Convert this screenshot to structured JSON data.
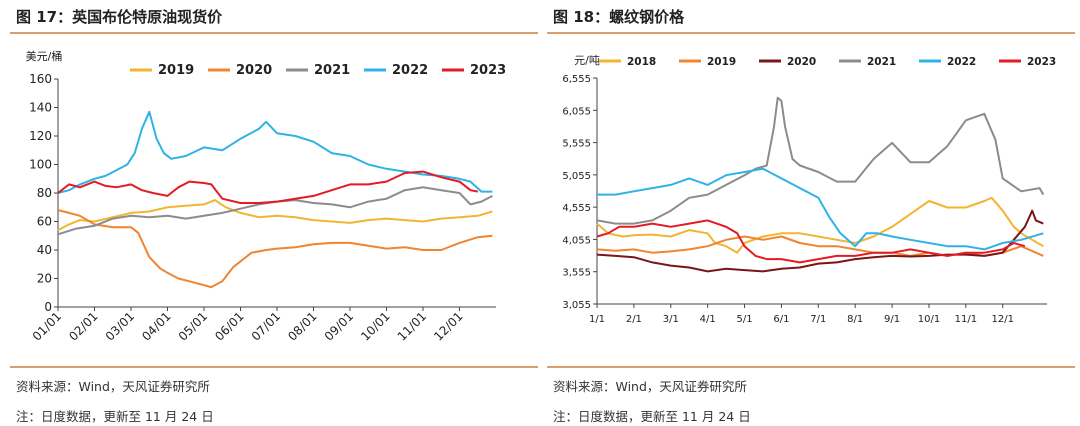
{
  "panels": [
    {
      "title": "图 17：英国布伦特原油现货价",
      "source": "资料来源：Wind，天风证券研究所",
      "note": "注：日度数据，更新至 11 月 24 日",
      "chart_data": {
        "type": "line",
        "ylabel": "美元/桶",
        "ylim": [
          0,
          160
        ],
        "yticks": [
          "0",
          "20",
          "40",
          "60",
          "80",
          "100",
          "120",
          "140",
          "160"
        ],
        "categories": [
          "01/01",
          "02/01",
          "03/01",
          "04/01",
          "05/01",
          "06/01",
          "07/01",
          "08/01",
          "09/01",
          "10/01",
          "11/01",
          "12/01"
        ],
        "xrange": [
          0,
          12
        ],
        "series": [
          {
            "name": "2019",
            "color": "#f2b431",
            "x": [
              0,
              0.3,
              0.6,
              1,
              1.5,
              2,
              2.5,
              3,
              3.5,
              4,
              4.3,
              4.6,
              5,
              5.5,
              6,
              6.5,
              7,
              7.5,
              8,
              8.5,
              9,
              9.5,
              10,
              10.5,
              11,
              11.5,
              11.9
            ],
            "y": [
              54,
              58,
              61,
              60,
              63,
              66,
              67,
              70,
              71,
              72,
              75,
              70,
              66,
              63,
              64,
              63,
              61,
              60,
              59,
              61,
              62,
              61,
              60,
              62,
              63,
              64,
              67
            ]
          },
          {
            "name": "2020",
            "color": "#ef8431",
            "x": [
              0,
              0.3,
              0.6,
              1,
              1.5,
              2,
              2.2,
              2.5,
              2.8,
              3,
              3.3,
              3.6,
              3.9,
              4.2,
              4.5,
              4.8,
              5,
              5.3,
              5.7,
              6,
              6.5,
              7,
              7.5,
              8,
              8.5,
              9,
              9.5,
              10,
              10.5,
              11,
              11.5,
              11.9
            ],
            "y": [
              68,
              66,
              64,
              58,
              56,
              56,
              52,
              35,
              27,
              24,
              20,
              18,
              16,
              14,
              18,
              28,
              32,
              38,
              40,
              41,
              42,
              44,
              45,
              45,
              43,
              41,
              42,
              40,
              40,
              45,
              49,
              50
            ]
          },
          {
            "name": "2021",
            "color": "#8c8c8c",
            "x": [
              0,
              0.5,
              1,
              1.5,
              2,
              2.5,
              3,
              3.5,
              4,
              4.5,
              5,
              5.5,
              6,
              6.5,
              7,
              7.5,
              8,
              8.5,
              9,
              9.5,
              10,
              10.5,
              11,
              11.3,
              11.6,
              11.9
            ],
            "y": [
              51,
              55,
              57,
              62,
              64,
              63,
              64,
              62,
              64,
              66,
              69,
              72,
              74,
              75,
              73,
              72,
              70,
              74,
              76,
              82,
              84,
              82,
              80,
              72,
              74,
              78
            ]
          },
          {
            "name": "2022",
            "color": "#2fb2e5",
            "x": [
              0,
              0.3,
              0.6,
              1,
              1.3,
              1.6,
              1.9,
              2.1,
              2.3,
              2.5,
              2.7,
              2.9,
              3.1,
              3.5,
              4,
              4.5,
              5,
              5.5,
              5.7,
              6,
              6.5,
              7,
              7.5,
              8,
              8.5,
              9,
              9.5,
              10,
              10.5,
              11,
              11.3,
              11.6,
              11.9
            ],
            "y": [
              80,
              82,
              86,
              90,
              92,
              96,
              100,
              108,
              125,
              137,
              118,
              108,
              104,
              106,
              112,
              110,
              118,
              125,
              130,
              122,
              120,
              116,
              108,
              106,
              100,
              97,
              95,
              93,
              92,
              90,
              88,
              81,
              81
            ]
          },
          {
            "name": "2023",
            "color": "#e31b23",
            "x": [
              0,
              0.3,
              0.6,
              1,
              1.3,
              1.6,
              2,
              2.3,
              2.6,
              3,
              3.3,
              3.6,
              4,
              4.2,
              4.5,
              5,
              5.5,
              6,
              6.5,
              7,
              7.5,
              8,
              8.5,
              9,
              9.5,
              10,
              10.5,
              11,
              11.3,
              11.5
            ],
            "y": [
              80,
              86,
              84,
              88,
              85,
              84,
              86,
              82,
              80,
              78,
              84,
              88,
              87,
              86,
              76,
              73,
              73,
              74,
              76,
              78,
              82,
              86,
              86,
              88,
              94,
              95,
              91,
              88,
              82,
              81
            ]
          }
        ]
      }
    },
    {
      "title": "图 18：螺纹钢价格",
      "source": "资料来源：Wind，天风证券研究所",
      "note": "注：日度数据，更新至 11 月 24 日",
      "chart_data": {
        "type": "line",
        "ylabel": "元/吨",
        "ylim": [
          3055,
          6555
        ],
        "yticks": [
          "3,055",
          "3,555",
          "4,055",
          "4,555",
          "5,055",
          "5,555",
          "6,055",
          "6,555"
        ],
        "categories": [
          "1/1",
          "2/1",
          "3/1",
          "4/1",
          "5/1",
          "6/1",
          "7/1",
          "8/1",
          "9/1",
          "10/1",
          "11/1",
          "12/1"
        ],
        "xrange": [
          0,
          12.2
        ],
        "series": [
          {
            "name": "2018",
            "color": "#f2b431",
            "x": [
              0,
              0.3,
              0.7,
              1,
              1.5,
              2,
              2.5,
              3,
              3.2,
              3.5,
              3.8,
              4,
              4.5,
              5,
              5.5,
              6,
              6.5,
              7,
              7.5,
              8,
              8.5,
              9,
              9.5,
              10,
              10.5,
              10.7,
              11,
              11.3,
              11.5,
              11.8,
              12.1
            ],
            "y": [
              4300,
              4150,
              4100,
              4120,
              4130,
              4100,
              4200,
              4150,
              4000,
              3950,
              3850,
              4000,
              4100,
              4150,
              4150,
              4100,
              4050,
              4000,
              4100,
              4250,
              4450,
              4650,
              4550,
              4550,
              4650,
              4700,
              4500,
              4250,
              4150,
              4050,
              3950
            ]
          },
          {
            "name": "2019",
            "color": "#ef8431",
            "x": [
              0,
              0.5,
              1,
              1.5,
              2,
              2.5,
              3,
              3.5,
              4,
              4.5,
              5,
              5.5,
              6,
              6.5,
              7,
              7.5,
              8,
              8.5,
              9,
              9.5,
              10,
              10.5,
              11,
              11.5,
              12.1
            ],
            "y": [
              3900,
              3880,
              3900,
              3850,
              3870,
              3900,
              3950,
              4050,
              4100,
              4050,
              4100,
              4000,
              3950,
              3950,
              3900,
              3850,
              3850,
              3800,
              3850,
              3800,
              3850,
              3800,
              3850,
              3950,
              3800
            ]
          },
          {
            "name": "2020",
            "color": "#7a1518",
            "x": [
              0,
              0.5,
              1,
              1.5,
              2,
              2.5,
              3,
              3.5,
              4,
              4.5,
              5,
              5.5,
              6,
              6.5,
              7,
              7.5,
              8,
              8.5,
              9,
              9.5,
              10,
              10.5,
              11,
              11.3,
              11.6,
              11.8,
              11.9,
              12.1
            ],
            "y": [
              3820,
              3800,
              3780,
              3700,
              3650,
              3620,
              3560,
              3600,
              3580,
              3560,
              3600,
              3620,
              3680,
              3700,
              3750,
              3780,
              3800,
              3790,
              3800,
              3820,
              3820,
              3800,
              3850,
              4050,
              4250,
              4500,
              4350,
              4300
            ]
          },
          {
            "name": "2021",
            "color": "#8c8c8c",
            "x": [
              0,
              0.5,
              1,
              1.5,
              2,
              2.5,
              3,
              3.5,
              4,
              4.3,
              4.6,
              4.8,
              4.9,
              5,
              5.1,
              5.3,
              5.5,
              6,
              6.5,
              7,
              7.5,
              8,
              8.5,
              9,
              9.5,
              10,
              10.5,
              10.8,
              11,
              11.5,
              12,
              12.1
            ],
            "y": [
              4350,
              4300,
              4300,
              4350,
              4500,
              4700,
              4750,
              4900,
              5050,
              5150,
              5200,
              5800,
              6250,
              6200,
              5800,
              5300,
              5200,
              5100,
              4950,
              4950,
              5300,
              5550,
              5250,
              5250,
              5500,
              5900,
              6000,
              5600,
              5000,
              4800,
              4850,
              4750
            ]
          },
          {
            "name": "2022",
            "color": "#2fb2e5",
            "x": [
              0,
              0.5,
              1,
              1.5,
              2,
              2.5,
              3,
              3.5,
              4,
              4.5,
              5,
              5.5,
              6,
              6.3,
              6.6,
              7,
              7.3,
              7.6,
              8,
              8.5,
              9,
              9.5,
              10,
              10.5,
              11,
              11.5,
              12.1
            ],
            "y": [
              4750,
              4750,
              4800,
              4850,
              4900,
              5000,
              4900,
              5050,
              5100,
              5150,
              5000,
              4850,
              4700,
              4400,
              4150,
              3950,
              4150,
              4150,
              4100,
              4050,
              4000,
              3950,
              3950,
              3900,
              4000,
              4050,
              4150
            ]
          },
          {
            "name": "2023",
            "color": "#e31b23",
            "x": [
              0,
              0.3,
              0.6,
              1,
              1.5,
              2,
              2.5,
              3,
              3.5,
              3.8,
              4,
              4.3,
              4.6,
              5,
              5.5,
              6,
              6.5,
              7,
              7.5,
              8,
              8.5,
              9,
              9.5,
              10,
              10.5,
              11,
              11.3,
              11.6
            ],
            "y": [
              4100,
              4150,
              4250,
              4250,
              4300,
              4250,
              4300,
              4350,
              4250,
              4150,
              3950,
              3800,
              3750,
              3750,
              3700,
              3750,
              3800,
              3800,
              3850,
              3850,
              3900,
              3850,
              3800,
              3850,
              3850,
              3900,
              4000,
              3950
            ]
          }
        ]
      }
    }
  ]
}
